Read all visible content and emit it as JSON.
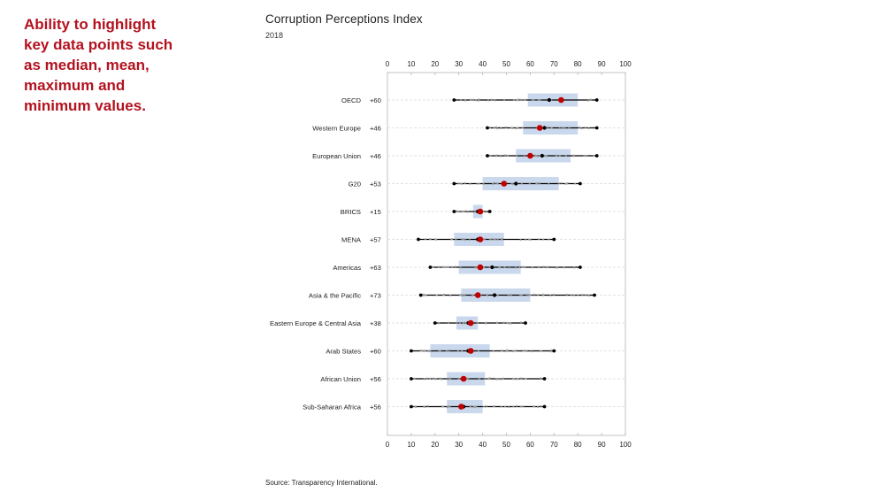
{
  "callout": {
    "lines": [
      "Ability to highlight",
      "key data points such",
      "as median, mean,",
      "maximum and",
      "minimum values."
    ]
  },
  "chart": {
    "title": "Corruption Perceptions Index",
    "subtitle": "2018",
    "source": "Source: Transparency International."
  },
  "colors": {
    "box": "#c9d8ec",
    "mean": "#c00000",
    "median": "#000000",
    "whisker": "#000000",
    "gridline": "#d9d9d9",
    "points": "#a0a0a0"
  },
  "chart_data": {
    "type": "boxplot",
    "title": "Corruption Perceptions Index",
    "subtitle": "2018",
    "xlim": [
      0,
      100
    ],
    "xticks": [
      0,
      10,
      20,
      30,
      40,
      50,
      60,
      70,
      80,
      90,
      100
    ],
    "categories": [
      {
        "name": "OECD",
        "count": "+60",
        "min": 28,
        "q1": 59,
        "median": 68,
        "q3": 80,
        "max": 88,
        "mean": 73
      },
      {
        "name": "Western Europe",
        "count": "+46",
        "min": 42,
        "q1": 57,
        "median": 66,
        "q3": 80,
        "max": 88,
        "mean": 64
      },
      {
        "name": "European Union",
        "count": "+46",
        "min": 42,
        "q1": 54,
        "median": 65,
        "q3": 77,
        "max": 88,
        "mean": 60
      },
      {
        "name": "G20",
        "count": "+53",
        "min": 28,
        "q1": 40,
        "median": 54,
        "q3": 72,
        "max": 81,
        "mean": 49
      },
      {
        "name": "BRICS",
        "count": "+15",
        "min": 28,
        "q1": 36,
        "median": 38,
        "q3": 40,
        "max": 43,
        "mean": 39
      },
      {
        "name": "MENA",
        "count": "+57",
        "min": 13,
        "q1": 28,
        "median": 38,
        "q3": 49,
        "max": 70,
        "mean": 39
      },
      {
        "name": "Americas",
        "count": "+63",
        "min": 18,
        "q1": 30,
        "median": 44,
        "q3": 56,
        "max": 81,
        "mean": 39
      },
      {
        "name": "Asia & the Pacific",
        "count": "+73",
        "min": 14,
        "q1": 31,
        "median": 45,
        "q3": 60,
        "max": 87,
        "mean": 38
      },
      {
        "name": "Eastern Europe & Central Asia",
        "count": "+38",
        "min": 20,
        "q1": 29,
        "median": 34,
        "q3": 38,
        "max": 58,
        "mean": 35
      },
      {
        "name": "Arab States",
        "count": "+60",
        "min": 10,
        "q1": 18,
        "median": 34,
        "q3": 43,
        "max": 70,
        "mean": 35
      },
      {
        "name": "African Union",
        "count": "+56",
        "min": 10,
        "q1": 25,
        "median": 32,
        "q3": 41,
        "max": 66,
        "mean": 32
      },
      {
        "name": "Sub-Saharan Africa",
        "count": "+56",
        "min": 10,
        "q1": 25,
        "median": 32,
        "q3": 40,
        "max": 66,
        "mean": 31
      }
    ],
    "legend": "none"
  }
}
